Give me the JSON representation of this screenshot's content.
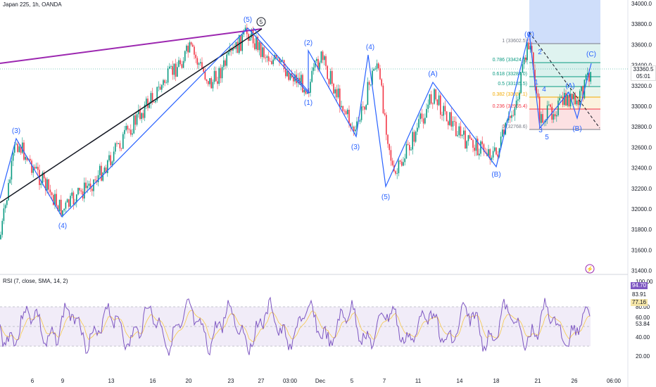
{
  "header": {
    "title": "Japan 225, 1h, OANDA",
    "rsi_title": "RSI (7, close, SMA, 14, 2)"
  },
  "price_axis": {
    "ticks": [
      "34000.0",
      "33800.0",
      "33600.0",
      "33400.0",
      "33200.0",
      "33000.0",
      "32800.0",
      "32600.0",
      "32400.0",
      "32200.0",
      "32000.0",
      "31800.0",
      "31600.0",
      "31400.0"
    ],
    "current_price": "33360.5",
    "countdown": "05:01"
  },
  "rsi_axis": {
    "ticks": [
      "100.00",
      "80.00",
      "60.00",
      "40.00",
      "20.00"
    ],
    "rsi_value": "94.70",
    "rsi_value_2": "83.91",
    "sma_value": "77.16",
    "extra_tick": "53.84"
  },
  "time_axis": {
    "labels": [
      "6",
      "9",
      "13",
      "16",
      "20",
      "23",
      "27",
      "03:00",
      "Dec",
      "5",
      "7",
      "11",
      "14",
      "18",
      "21",
      "26",
      "06:00"
    ]
  },
  "waves": {
    "labels": [
      "(3)",
      "(4)",
      "(5)",
      "(1)",
      "(2)",
      "(3)",
      "(4)",
      "(5)",
      "(A)",
      "(B)",
      "(C)",
      "(A)",
      "(B)",
      "(C)",
      "2",
      "1",
      "4",
      "3",
      "5"
    ],
    "circle_label": "5"
  },
  "fib": {
    "levels": [
      {
        "ratio": "1",
        "price": "(33602.5)",
        "color": "#787b86"
      },
      {
        "ratio": "0.786",
        "price": "(33424.1)",
        "color": "#089981"
      },
      {
        "ratio": "0.618",
        "price": "(33284.0)",
        "color": "#089981"
      },
      {
        "ratio": "0.5",
        "price": "(33185.5)",
        "color": "#089981"
      },
      {
        "ratio": "0.382",
        "price": "(33087.1)",
        "color": "#f2a900"
      },
      {
        "ratio": "0.236",
        "price": "(32965.4)",
        "color": "#f23645"
      },
      {
        "ratio": "0",
        "price": "(32768.6)",
        "color": "#787b86"
      }
    ]
  },
  "colors": {
    "up": "#089981",
    "down": "#f23645",
    "wave": "#2962ff",
    "rsi": "#7e57c2",
    "rsi_band": "#ede7f6"
  }
}
